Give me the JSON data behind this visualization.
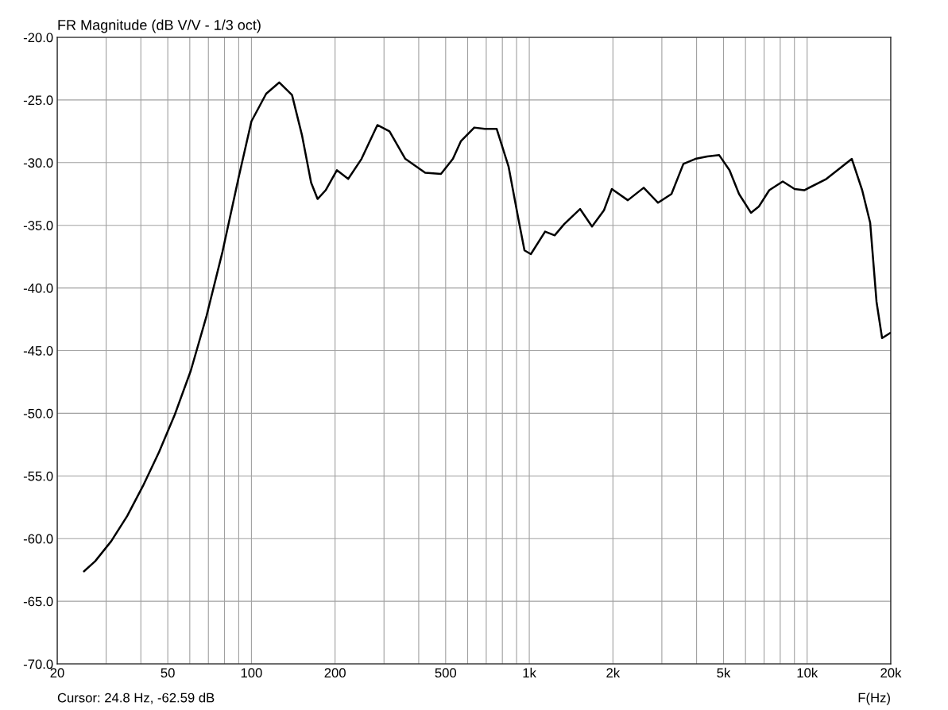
{
  "chart_data": {
    "type": "line",
    "title": "FR Magnitude (dB V/V - 1/3 oct)",
    "xlabel": "F(Hz)",
    "log": "x",
    "grid": true,
    "legend": false,
    "marker": "none",
    "line_style": "solid",
    "annotations": [
      "Cursor: 24.8 Hz, -62.59 dB"
    ],
    "xlim": [
      20,
      20000
    ],
    "ylim": [
      -70,
      -20
    ],
    "xticks": [
      {
        "value": 20,
        "label": "20"
      },
      {
        "value": 30,
        "label": null
      },
      {
        "value": 40,
        "label": null
      },
      {
        "value": 50,
        "label": "50"
      },
      {
        "value": 60,
        "label": null
      },
      {
        "value": 70,
        "label": null
      },
      {
        "value": 80,
        "label": null
      },
      {
        "value": 90,
        "label": null
      },
      {
        "value": 100,
        "label": "100"
      },
      {
        "value": 200,
        "label": "200"
      },
      {
        "value": 300,
        "label": null
      },
      {
        "value": 400,
        "label": null
      },
      {
        "value": 500,
        "label": "500"
      },
      {
        "value": 600,
        "label": null
      },
      {
        "value": 700,
        "label": null
      },
      {
        "value": 800,
        "label": null
      },
      {
        "value": 900,
        "label": null
      },
      {
        "value": 1000,
        "label": "1k"
      },
      {
        "value": 2000,
        "label": "2k"
      },
      {
        "value": 3000,
        "label": null
      },
      {
        "value": 4000,
        "label": null
      },
      {
        "value": 5000,
        "label": "5k"
      },
      {
        "value": 6000,
        "label": null
      },
      {
        "value": 7000,
        "label": null
      },
      {
        "value": 8000,
        "label": null
      },
      {
        "value": 9000,
        "label": null
      },
      {
        "value": 10000,
        "label": "10k"
      },
      {
        "value": 20000,
        "label": "20k"
      }
    ],
    "yticks": [
      {
        "value": -70,
        "label": "-70.0"
      },
      {
        "value": -65,
        "label": "-65.0"
      },
      {
        "value": -60,
        "label": "-60.0"
      },
      {
        "value": -55,
        "label": "-55.0"
      },
      {
        "value": -50,
        "label": "-50.0"
      },
      {
        "value": -45,
        "label": "-45.0"
      },
      {
        "value": -40,
        "label": "-40.0"
      },
      {
        "value": -35,
        "label": "-35.0"
      },
      {
        "value": -30,
        "label": "-30.0"
      },
      {
        "value": -25,
        "label": "-25.0"
      },
      {
        "value": -20,
        "label": "-20.0"
      }
    ],
    "series": [
      {
        "color": "#000000",
        "x": [
          25.0,
          27.4,
          31.3,
          35.7,
          40.7,
          46.5,
          53.0,
          60.5,
          69.0,
          78.7,
          89.7,
          100,
          113,
          126,
          140,
          152,
          164,
          173,
          185,
          203,
          223,
          249,
          284,
          314,
          358,
          422,
          481,
          531,
          567,
          634,
          691,
          763,
          842,
          912,
          961,
          1013,
          1140,
          1234,
          1336,
          1524,
          1682,
          1857,
          1982,
          2263,
          2581,
          2906,
          3249,
          3586,
          3960,
          4371,
          4825,
          5255,
          5687,
          6277,
          6704,
          7305,
          8170,
          9016,
          9761,
          11730,
          13380,
          14480,
          15780,
          16860,
          17770,
          18610,
          19870
        ],
        "values": [
          -62.6,
          -61.8,
          -60.2,
          -58.2,
          -55.8,
          -53.1,
          -50.1,
          -46.6,
          -42.2,
          -37.1,
          -31.3,
          -26.7,
          -24.5,
          -23.6,
          -24.6,
          -27.8,
          -31.6,
          -32.9,
          -32.2,
          -30.6,
          -31.3,
          -29.7,
          -27.0,
          -27.5,
          -29.7,
          -30.8,
          -30.9,
          -29.7,
          -28.3,
          -27.2,
          -27.3,
          -27.3,
          -30.3,
          -34.4,
          -37.0,
          -37.3,
          -35.5,
          -35.8,
          -34.9,
          -33.7,
          -35.1,
          -33.8,
          -32.1,
          -33.0,
          -32.0,
          -33.2,
          -32.5,
          -30.1,
          -29.7,
          -29.5,
          -29.4,
          -30.6,
          -32.5,
          -34.0,
          -33.5,
          -32.2,
          -31.5,
          -32.1,
          -32.2,
          -31.3,
          -30.3,
          -29.7,
          -32.2,
          -34.8,
          -41.1,
          -44.0,
          -43.6
        ]
      }
    ]
  }
}
